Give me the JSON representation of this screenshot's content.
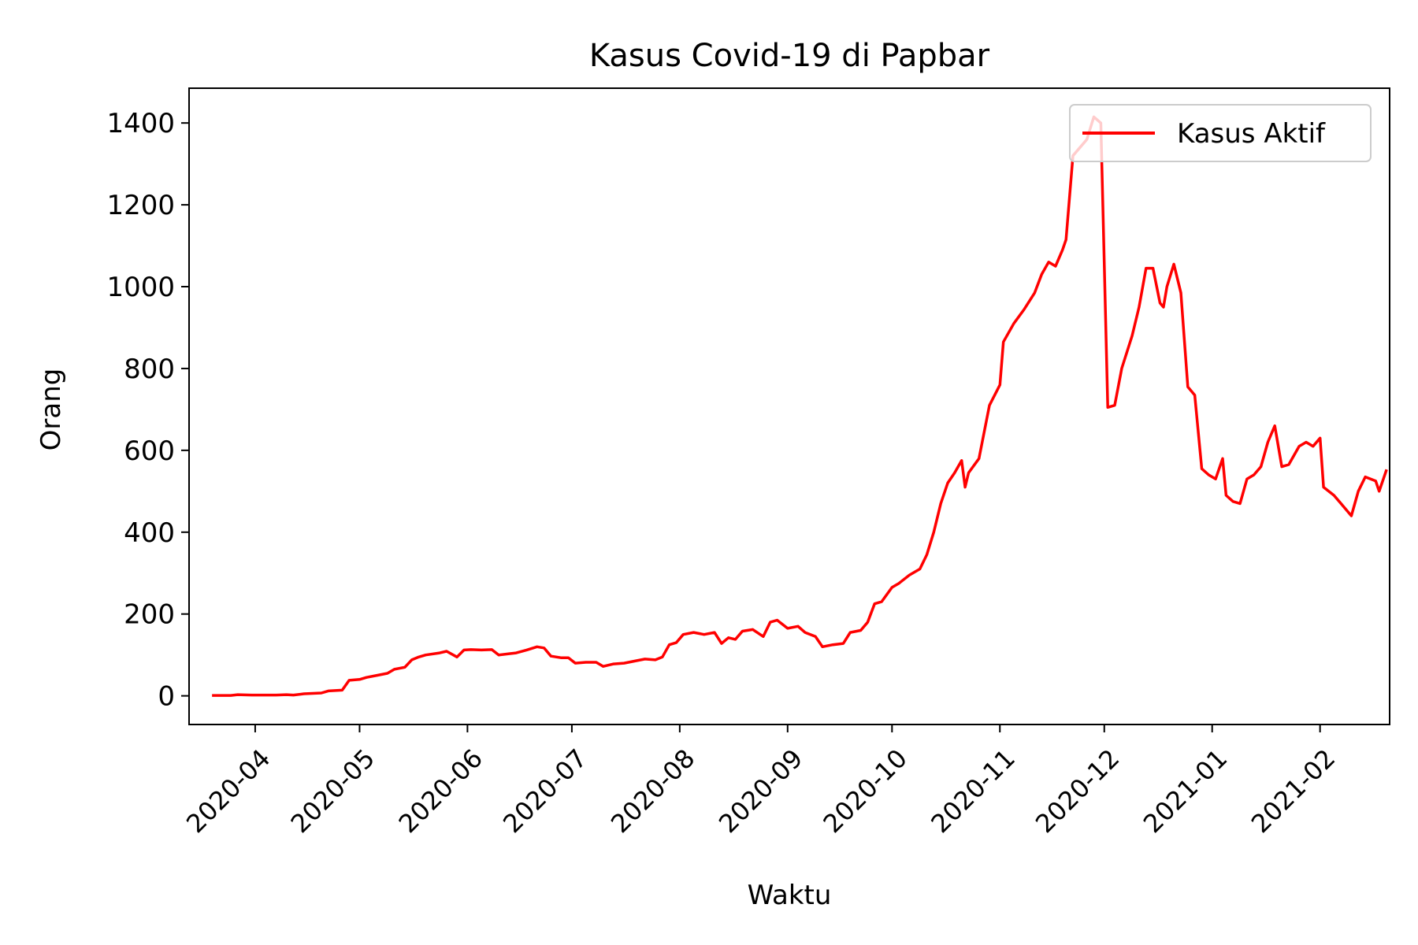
{
  "chart_data": {
    "type": "line",
    "title": "Kasus Covid-19 di Papbar",
    "xlabel": "Waktu",
    "ylabel": "Orang",
    "x_type": "date",
    "xlim": [
      "2020-03-13",
      "2021-02-21"
    ],
    "ylim": [
      -70,
      1485
    ],
    "x_ticks": [
      "2020-04-01",
      "2020-05-01",
      "2020-06-01",
      "2020-07-01",
      "2020-08-01",
      "2020-09-01",
      "2020-10-01",
      "2020-11-01",
      "2020-12-01",
      "2021-01-01",
      "2021-02-01"
    ],
    "x_tick_labels": [
      "2020-04",
      "2020-05",
      "2020-06",
      "2020-07",
      "2020-08",
      "2020-09",
      "2020-10",
      "2020-11",
      "2020-12",
      "2021-01",
      "2021-02"
    ],
    "y_ticks": [
      0,
      200,
      400,
      600,
      800,
      1000,
      1200,
      1400
    ],
    "y_tick_labels": [
      "0",
      "200",
      "400",
      "600",
      "800",
      "1000",
      "1200",
      "1400"
    ],
    "grid": false,
    "legend": {
      "position": "top-right"
    },
    "series": [
      {
        "name": "Kasus Aktif",
        "color": "#ff0000",
        "points": [
          [
            "2020-03-20",
            1
          ],
          [
            "2020-03-25",
            1
          ],
          [
            "2020-03-27",
            3
          ],
          [
            "2020-03-31",
            2
          ],
          [
            "2020-04-07",
            2
          ],
          [
            "2020-04-10",
            3
          ],
          [
            "2020-04-12",
            2
          ],
          [
            "2020-04-15",
            5
          ],
          [
            "2020-04-20",
            7
          ],
          [
            "2020-04-22",
            12
          ],
          [
            "2020-04-26",
            14
          ],
          [
            "2020-04-28",
            38
          ],
          [
            "2020-05-01",
            40
          ],
          [
            "2020-05-03",
            45
          ],
          [
            "2020-05-06",
            50
          ],
          [
            "2020-05-09",
            55
          ],
          [
            "2020-05-11",
            65
          ],
          [
            "2020-05-14",
            70
          ],
          [
            "2020-05-16",
            88
          ],
          [
            "2020-05-18",
            95
          ],
          [
            "2020-05-20",
            100
          ],
          [
            "2020-05-24",
            105
          ],
          [
            "2020-05-26",
            109
          ],
          [
            "2020-05-29",
            95
          ],
          [
            "2020-05-31",
            112
          ],
          [
            "2020-06-02",
            113
          ],
          [
            "2020-06-05",
            112
          ],
          [
            "2020-06-08",
            113
          ],
          [
            "2020-06-10",
            100
          ],
          [
            "2020-06-13",
            103
          ],
          [
            "2020-06-15",
            105
          ],
          [
            "2020-06-18",
            112
          ],
          [
            "2020-06-21",
            120
          ],
          [
            "2020-06-23",
            117
          ],
          [
            "2020-06-25",
            97
          ],
          [
            "2020-06-28",
            93
          ],
          [
            "2020-06-30",
            93
          ],
          [
            "2020-07-02",
            80
          ],
          [
            "2020-07-05",
            82
          ],
          [
            "2020-07-08",
            82
          ],
          [
            "2020-07-10",
            72
          ],
          [
            "2020-07-13",
            78
          ],
          [
            "2020-07-16",
            80
          ],
          [
            "2020-07-19",
            85
          ],
          [
            "2020-07-22",
            90
          ],
          [
            "2020-07-25",
            88
          ],
          [
            "2020-07-27",
            95
          ],
          [
            "2020-07-29",
            125
          ],
          [
            "2020-07-31",
            130
          ],
          [
            "2020-08-02",
            150
          ],
          [
            "2020-08-05",
            155
          ],
          [
            "2020-08-08",
            150
          ],
          [
            "2020-08-11",
            155
          ],
          [
            "2020-08-13",
            128
          ],
          [
            "2020-08-15",
            142
          ],
          [
            "2020-08-17",
            138
          ],
          [
            "2020-08-19",
            158
          ],
          [
            "2020-08-22",
            162
          ],
          [
            "2020-08-25",
            145
          ],
          [
            "2020-08-27",
            180
          ],
          [
            "2020-08-29",
            185
          ],
          [
            "2020-09-01",
            165
          ],
          [
            "2020-09-04",
            170
          ],
          [
            "2020-09-06",
            155
          ],
          [
            "2020-09-09",
            145
          ],
          [
            "2020-09-11",
            120
          ],
          [
            "2020-09-14",
            125
          ],
          [
            "2020-09-17",
            128
          ],
          [
            "2020-09-19",
            155
          ],
          [
            "2020-09-22",
            160
          ],
          [
            "2020-09-24",
            180
          ],
          [
            "2020-09-26",
            225
          ],
          [
            "2020-09-28",
            230
          ],
          [
            "2020-10-01",
            265
          ],
          [
            "2020-10-03",
            275
          ],
          [
            "2020-10-06",
            295
          ],
          [
            "2020-10-09",
            310
          ],
          [
            "2020-10-11",
            345
          ],
          [
            "2020-10-13",
            400
          ],
          [
            "2020-10-15",
            470
          ],
          [
            "2020-10-17",
            520
          ],
          [
            "2020-10-19",
            545
          ],
          [
            "2020-10-21",
            575
          ],
          [
            "2020-10-22",
            510
          ],
          [
            "2020-10-23",
            545
          ],
          [
            "2020-10-26",
            580
          ],
          [
            "2020-10-29",
            710
          ],
          [
            "2020-11-01",
            760
          ],
          [
            "2020-11-02",
            865
          ],
          [
            "2020-11-05",
            910
          ],
          [
            "2020-11-08",
            945
          ],
          [
            "2020-11-11",
            985
          ],
          [
            "2020-11-13",
            1030
          ],
          [
            "2020-11-15",
            1060
          ],
          [
            "2020-11-17",
            1050
          ],
          [
            "2020-11-19",
            1090
          ],
          [
            "2020-11-20",
            1115
          ],
          [
            "2020-11-22",
            1320
          ],
          [
            "2020-11-24",
            1340
          ],
          [
            "2020-11-26",
            1360
          ],
          [
            "2020-11-28",
            1415
          ],
          [
            "2020-11-30",
            1400
          ],
          [
            "2020-12-02",
            705
          ],
          [
            "2020-12-04",
            710
          ],
          [
            "2020-12-06",
            800
          ],
          [
            "2020-12-09",
            880
          ],
          [
            "2020-12-11",
            950
          ],
          [
            "2020-12-13",
            1045
          ],
          [
            "2020-12-15",
            1045
          ],
          [
            "2020-12-17",
            960
          ],
          [
            "2020-12-18",
            950
          ],
          [
            "2020-12-19",
            1000
          ],
          [
            "2020-12-21",
            1055
          ],
          [
            "2020-12-23",
            985
          ],
          [
            "2020-12-25",
            755
          ],
          [
            "2020-12-27",
            735
          ],
          [
            "2020-12-29",
            555
          ],
          [
            "2020-12-31",
            540
          ],
          [
            "2021-01-02",
            530
          ],
          [
            "2021-01-04",
            580
          ],
          [
            "2021-01-05",
            490
          ],
          [
            "2021-01-07",
            475
          ],
          [
            "2021-01-09",
            470
          ],
          [
            "2021-01-11",
            530
          ],
          [
            "2021-01-13",
            540
          ],
          [
            "2021-01-15",
            560
          ],
          [
            "2021-01-17",
            620
          ],
          [
            "2021-01-19",
            660
          ],
          [
            "2021-01-21",
            560
          ],
          [
            "2021-01-23",
            565
          ],
          [
            "2021-01-26",
            610
          ],
          [
            "2021-01-28",
            620
          ],
          [
            "2021-01-30",
            610
          ],
          [
            "2021-02-01",
            630
          ],
          [
            "2021-02-02",
            510
          ],
          [
            "2021-02-05",
            490
          ],
          [
            "2021-02-07",
            470
          ],
          [
            "2021-02-10",
            440
          ],
          [
            "2021-02-12",
            500
          ],
          [
            "2021-02-14",
            535
          ],
          [
            "2021-02-17",
            525
          ],
          [
            "2021-02-18",
            500
          ],
          [
            "2021-02-20",
            550
          ]
        ]
      }
    ]
  }
}
